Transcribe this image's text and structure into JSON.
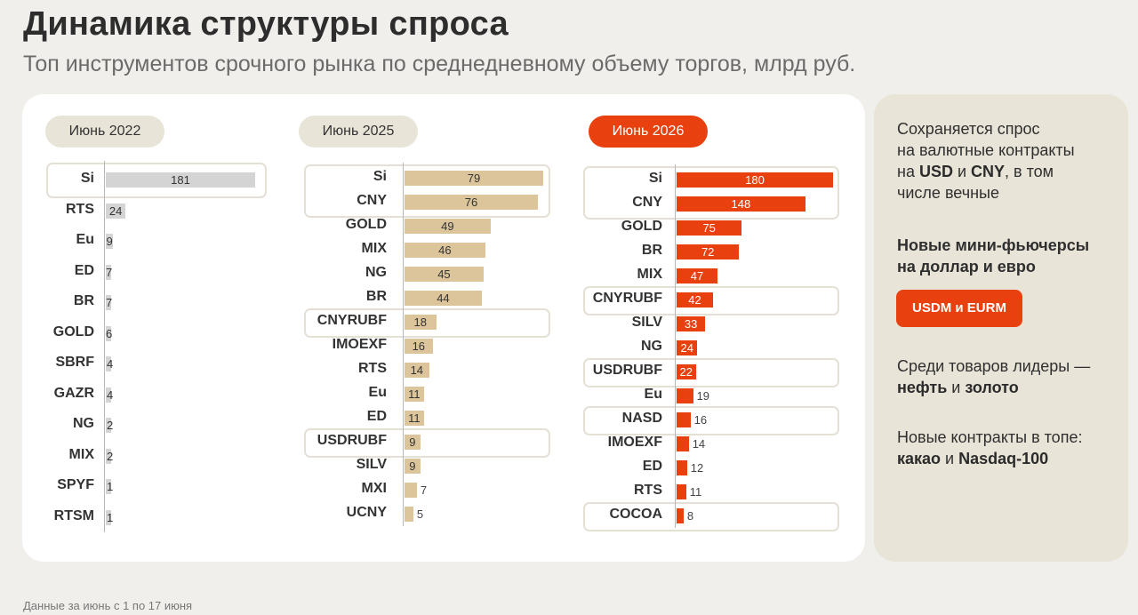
{
  "header": {
    "title": "Динамика структуры спроса",
    "subtitle": "Топ инструментов срочного рынка по среднедневному объему торгов, млрд руб."
  },
  "footnote": "Данные за июнь с 1 по 17 июня",
  "colors": {
    "bg": "#f1efeb",
    "panel": "#ffffff",
    "sidebar": "#e9e4d8",
    "bar_2022": "#d4d4d4",
    "bar_2025": "#dcc49b",
    "bar_2026": "#e8400e",
    "highlight_border": "#e5e0d6"
  },
  "chart_data": [
    {
      "type": "bar",
      "orientation": "horizontal",
      "title": "Июнь 2022",
      "categories": [
        "Si",
        "RTS",
        "Eu",
        "ED",
        "BR",
        "GOLD",
        "SBRF",
        "GAZR",
        "NG",
        "MIX",
        "SPYF",
        "RTSM"
      ],
      "values": [
        181,
        24,
        9,
        7,
        7,
        6,
        4,
        4,
        2,
        2,
        1,
        1
      ],
      "highlighted": [
        "Si"
      ]
    },
    {
      "type": "bar",
      "orientation": "horizontal",
      "title": "Июнь 2025",
      "categories": [
        "Si",
        "CNY",
        "GOLD",
        "MIX",
        "NG",
        "BR",
        "CNYRUBF",
        "IMOEXF",
        "RTS",
        "Eu",
        "ED",
        "USDRUBF",
        "SILV",
        "MXI",
        "UCNY"
      ],
      "values": [
        79,
        76,
        49,
        46,
        45,
        44,
        18,
        16,
        14,
        11,
        11,
        9,
        9,
        7,
        5
      ],
      "highlighted": [
        "Si",
        "CNY",
        "CNYRUBF",
        "USDRUBF"
      ]
    },
    {
      "type": "bar",
      "orientation": "horizontal",
      "title": "Июнь 2026",
      "categories": [
        "Si",
        "CNY",
        "GOLD",
        "BR",
        "MIX",
        "CNYRUBF",
        "SILV",
        "NG",
        "USDRUBF",
        "Eu",
        "NASD",
        "IMOEXF",
        "ED",
        "RTS",
        "COCOA"
      ],
      "values": [
        180,
        148,
        75,
        72,
        47,
        42,
        33,
        24,
        22,
        19,
        16,
        14,
        12,
        11,
        8
      ],
      "highlighted": [
        "Si",
        "CNY",
        "CNYRUBF",
        "USDRUBF",
        "NASD",
        "COCOA"
      ]
    }
  ],
  "sidebar": {
    "block1": {
      "line1": "Сохраняется спрос",
      "line2": "на валютные контракты",
      "pre3": "на ",
      "usd": "USD",
      "and1": " и ",
      "cny": "CNY",
      "post3": ", в том",
      "line4": "числе вечные"
    },
    "block2": {
      "line1": "Новые мини-фьючерсы",
      "line2": "на доллар и евро",
      "button": "USDM и EURM"
    },
    "block3": {
      "line1": "Среди товаров лидеры —",
      "oil": "нефть",
      "and": " и ",
      "gold": "золото"
    },
    "block4": {
      "line1": "Новые контракты в топе:",
      "cocoa": "какао",
      "and": " и ",
      "nasdaq": "Nasdaq-100"
    }
  }
}
